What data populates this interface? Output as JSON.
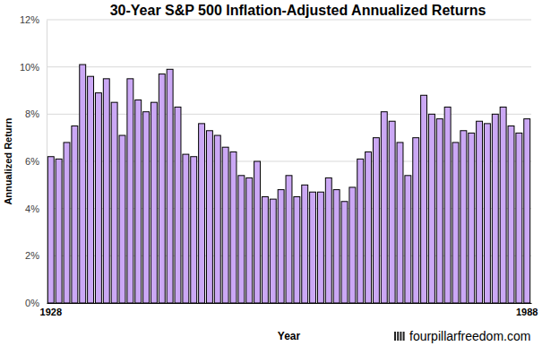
{
  "chart_data": {
    "type": "bar",
    "title": "30-Year S&P 500 Inflation-Adjusted Annualized Returns",
    "x_label": "Year",
    "y_label": "Annualized Return",
    "annotations": [
      "fourpillarfreedom.com"
    ],
    "categories": [
      "1928",
      null,
      null,
      null,
      null,
      null,
      null,
      null,
      null,
      null,
      null,
      null,
      null,
      null,
      null,
      null,
      null,
      null,
      null,
      null,
      null,
      null,
      null,
      null,
      null,
      null,
      null,
      null,
      null,
      null,
      null,
      null,
      null,
      null,
      null,
      null,
      null,
      null,
      null,
      null,
      null,
      null,
      null,
      null,
      null,
      null,
      null,
      null,
      null,
      null,
      null,
      null,
      null,
      null,
      null,
      null,
      null,
      null,
      null,
      null,
      "1988"
    ],
    "values": [
      6.2,
      6.1,
      6.8,
      7.5,
      10.1,
      9.6,
      8.9,
      9.5,
      8.5,
      7.1,
      9.5,
      8.6,
      8.1,
      8.5,
      9.7,
      9.9,
      8.3,
      6.3,
      6.2,
      7.6,
      7.3,
      7.1,
      6.6,
      6.4,
      5.4,
      5.3,
      6.0,
      4.5,
      4.4,
      4.8,
      5.4,
      4.5,
      5.0,
      4.7,
      4.7,
      5.3,
      4.8,
      4.3,
      4.9,
      6.1,
      6.4,
      7.0,
      8.1,
      7.7,
      6.8,
      5.4,
      7.0,
      8.8,
      8.0,
      7.8,
      8.3,
      6.8,
      7.3,
      7.2,
      7.7,
      7.6,
      8.0,
      8.3,
      7.5,
      7.2,
      7.8
    ],
    "color": "#cba8f5",
    "ylim": [
      0,
      12
    ],
    "yticks": [
      {
        "value": 0,
        "label": "0%"
      },
      {
        "value": 2,
        "label": "2%"
      },
      {
        "value": 4,
        "label": "4%"
      },
      {
        "value": 6,
        "label": "6%"
      },
      {
        "value": 8,
        "label": "8%"
      },
      {
        "value": 10,
        "label": "10%"
      },
      {
        "value": 12,
        "label": "12%"
      }
    ],
    "grid": true
  }
}
